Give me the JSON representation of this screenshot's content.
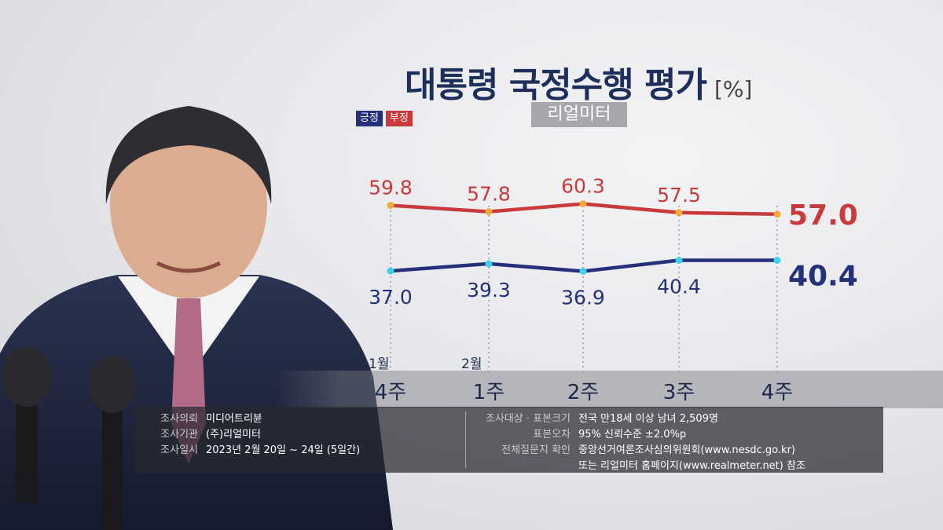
{
  "header": {
    "title": "대통령 국정수행 평가",
    "unit": "[%]",
    "source_badge": "리얼미터"
  },
  "legend": {
    "positive": "긍정",
    "negative": "부정"
  },
  "colors": {
    "positive": "#24307a",
    "negative": "#c83a3c",
    "positive_marker": "#3fd0ec",
    "negative_marker": "#f5a93a"
  },
  "chart_data": {
    "type": "line",
    "title": "대통령 국정수행 평가",
    "unit": "[%]",
    "x": [
      "4주",
      "1주",
      "2주",
      "3주",
      "4주"
    ],
    "month_labels": [
      "1월",
      "2월",
      "",
      "",
      ""
    ],
    "series": [
      {
        "name": "부정",
        "values": [
          59.8,
          57.8,
          60.3,
          57.5,
          57.0
        ],
        "labels": [
          "59.8",
          "57.8",
          "60.3",
          "57.5",
          "57.0"
        ]
      },
      {
        "name": "긍정",
        "values": [
          37.0,
          39.3,
          36.9,
          40.4,
          40.4
        ],
        "labels": [
          "37.0",
          "39.3",
          "36.9",
          "40.4",
          "40.4"
        ]
      }
    ]
  },
  "survey_info": {
    "left": [
      {
        "key": "조사의뢰",
        "value": "미디어트리뷴"
      },
      {
        "key": "조사기관",
        "value": "(주)리얼미터"
      },
      {
        "key": "조사일시",
        "value": "2023년 2월 20일 ~ 24일 (5일간)"
      }
    ],
    "right": [
      {
        "key": "조사대상 · 표본크기",
        "value": "전국 만18세 이상 남녀 2,509명"
      },
      {
        "key": "표본오차",
        "value": "95% 신뢰수준 ±2.0%p"
      },
      {
        "key": "전체질문지 확인",
        "value": "중앙선거여론조사심의위원회(www.nesdc.go.kr)"
      },
      {
        "key": "",
        "value": "또는 리얼미터 홈페이지(www.realmeter.net) 참조"
      }
    ]
  }
}
